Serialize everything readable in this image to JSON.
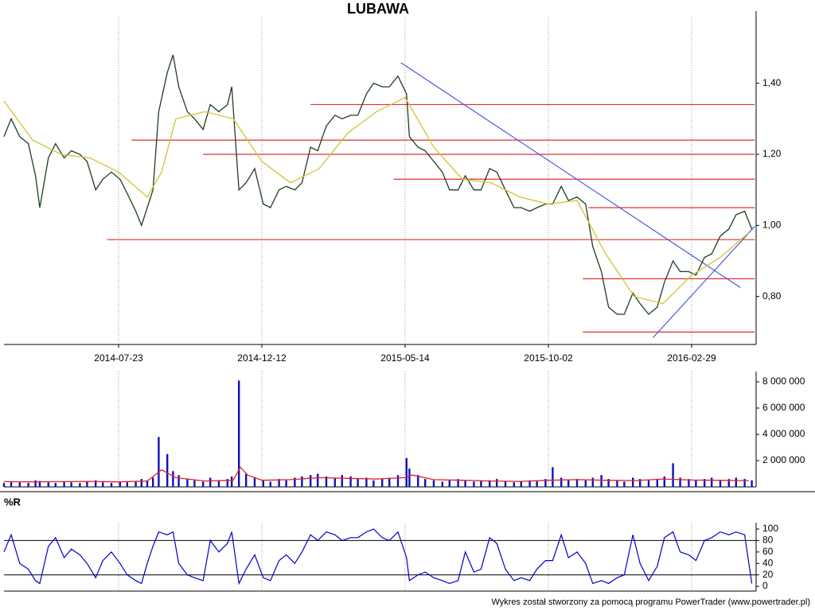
{
  "chart_data": [
    {
      "type": "line",
      "title": "LUBAWA",
      "x": [
        0,
        5,
        11,
        17,
        22,
        25,
        31,
        36,
        42,
        47,
        53,
        58,
        64,
        69,
        75,
        81,
        86,
        92,
        96,
        100,
        104,
        108,
        114,
        118,
        122,
        128,
        133,
        139,
        144,
        150,
        156,
        159,
        164,
        169,
        175,
        181,
        186,
        192,
        197,
        203,
        208,
        214,
        219,
        225,
        231,
        236,
        242,
        247,
        253,
        258,
        264,
        269,
        275,
        281,
        283,
        289,
        294,
        300,
        306,
        311,
        317,
        322,
        328,
        333,
        339,
        344,
        350,
        356,
        361,
        367,
        372,
        378,
        383,
        389,
        394,
        400,
        406,
        411,
        417,
        422,
        428,
        433,
        439,
        444,
        450,
        456,
        461,
        467,
        472,
        478,
        483,
        489,
        494,
        500,
        506,
        511,
        517,
        522
      ],
      "series": [
        {
          "color": "#1f3d1f",
          "values": [
            1.25,
            1.3,
            1.25,
            1.23,
            1.14,
            1.05,
            1.19,
            1.23,
            1.19,
            1.21,
            1.2,
            1.18,
            1.1,
            1.13,
            1.15,
            1.13,
            1.09,
            1.04,
            1.0,
            1.05,
            1.1,
            1.32,
            1.43,
            1.48,
            1.39,
            1.32,
            1.3,
            1.27,
            1.34,
            1.32,
            1.34,
            1.39,
            1.1,
            1.12,
            1.16,
            1.06,
            1.05,
            1.1,
            1.11,
            1.1,
            1.12,
            1.22,
            1.21,
            1.28,
            1.31,
            1.3,
            1.31,
            1.31,
            1.37,
            1.4,
            1.39,
            1.39,
            1.42,
            1.37,
            1.25,
            1.22,
            1.21,
            1.18,
            1.15,
            1.1,
            1.1,
            1.14,
            1.1,
            1.1,
            1.16,
            1.15,
            1.1,
            1.05,
            1.05,
            1.04,
            1.05,
            1.06,
            1.06,
            1.11,
            1.07,
            1.08,
            1.06,
            0.94,
            0.87,
            0.77,
            0.75,
            0.75,
            0.81,
            0.78,
            0.75,
            0.77,
            0.84,
            0.9,
            0.87,
            0.87,
            0.86,
            0.91,
            0.92,
            0.97,
            0.99,
            1.03,
            1.04,
            0.99
          ]
        }
      ],
      "moving_average": {
        "color": "#d4c232",
        "x": [
          0,
          20,
          40,
          60,
          80,
          100,
          110,
          120,
          140,
          160,
          180,
          200,
          220,
          240,
          260,
          280,
          300,
          320,
          340,
          360,
          380,
          400,
          420,
          440,
          460,
          480,
          500,
          520
        ],
        "values": [
          1.35,
          1.24,
          1.2,
          1.19,
          1.15,
          1.08,
          1.15,
          1.3,
          1.32,
          1.3,
          1.18,
          1.12,
          1.16,
          1.26,
          1.32,
          1.36,
          1.22,
          1.13,
          1.12,
          1.08,
          1.06,
          1.07,
          0.92,
          0.8,
          0.78,
          0.86,
          0.91,
          0.98
        ]
      },
      "levels": [
        {
          "color": "#e03030",
          "x": [
            214,
            524
          ],
          "values": [
            1.34,
            1.34
          ]
        },
        {
          "color": "#e03030",
          "x": [
            89,
            524
          ],
          "values": [
            1.24,
            1.24
          ]
        },
        {
          "color": "#e03030",
          "x": [
            139,
            524
          ],
          "values": [
            1.2,
            1.2
          ]
        },
        {
          "color": "#e03030",
          "x": [
            272,
            524
          ],
          "values": [
            1.13,
            1.13
          ]
        },
        {
          "color": "#e03030",
          "x": [
            408,
            524
          ],
          "values": [
            1.05,
            1.05
          ]
        },
        {
          "color": "#e03030",
          "x": [
            72,
            524
          ],
          "values": [
            0.96,
            0.96
          ]
        },
        {
          "color": "#e03030",
          "x": [
            404,
            524
          ],
          "values": [
            0.85,
            0.85
          ]
        },
        {
          "color": "#e03030",
          "x": [
            404,
            524
          ],
          "values": [
            0.7,
            0.7
          ]
        },
        {
          "color": "#4a5ae0",
          "x": [
            277,
            514
          ],
          "values": [
            1.458,
            0.825
          ]
        },
        {
          "color": "#4a5ae0",
          "x": [
            453,
            524
          ],
          "values": [
            0.684,
            0.997
          ]
        }
      ],
      "xlim": [
        0,
        525
      ],
      "ylim": [
        0.665,
        1.585
      ],
      "xticks": [
        {
          "value": 80,
          "label": "2014-07-23"
        },
        {
          "value": 180,
          "label": "2014-12-12"
        },
        {
          "value": 280,
          "label": "2015-05-14"
        },
        {
          "value": 380,
          "label": "2015-10-02"
        },
        {
          "value": 480,
          "label": "2016-02-29"
        }
      ],
      "yticks": [
        {
          "value": 0.8,
          "label": "0,80"
        },
        {
          "value": 1.0,
          "label": "1,00"
        },
        {
          "value": 1.2,
          "label": "1,20"
        },
        {
          "value": 1.4,
          "label": "1,40"
        }
      ],
      "grid": true
    },
    {
      "type": "bar",
      "color": "#1010c0",
      "x": [
        0,
        5,
        11,
        17,
        22,
        25,
        31,
        36,
        42,
        47,
        53,
        58,
        64,
        69,
        75,
        81,
        86,
        92,
        96,
        100,
        104,
        108,
        114,
        118,
        122,
        128,
        133,
        139,
        144,
        150,
        156,
        159,
        164,
        169,
        175,
        181,
        186,
        192,
        197,
        203,
        208,
        214,
        219,
        225,
        231,
        236,
        242,
        247,
        253,
        258,
        264,
        269,
        275,
        281,
        283,
        289,
        294,
        300,
        306,
        311,
        317,
        322,
        328,
        333,
        339,
        344,
        350,
        356,
        361,
        367,
        372,
        378,
        383,
        389,
        394,
        400,
        406,
        411,
        417,
        422,
        428,
        433,
        439,
        444,
        450,
        456,
        461,
        467,
        472,
        478,
        483,
        489,
        494,
        500,
        506,
        511,
        517,
        522
      ],
      "values": [
        300000,
        400000,
        350000,
        300000,
        500000,
        450000,
        350000,
        300000,
        400000,
        350000,
        300000,
        450000,
        500000,
        350000,
        300000,
        400000,
        350000,
        450000,
        600000,
        500000,
        700000,
        3800000,
        2500000,
        1200000,
        900000,
        600000,
        500000,
        400000,
        700000,
        500000,
        600000,
        800000,
        8100000,
        1000000,
        700000,
        500000,
        400000,
        600000,
        500000,
        700000,
        800000,
        900000,
        1000000,
        800000,
        700000,
        900000,
        800000,
        600000,
        700000,
        500000,
        600000,
        700000,
        900000,
        2200000,
        1400000,
        900000,
        600000,
        500000,
        400000,
        500000,
        600000,
        500000,
        400000,
        450000,
        500000,
        600000,
        400000,
        350000,
        400000,
        500000,
        450000,
        600000,
        1500000,
        700000,
        500000,
        600000,
        500000,
        700000,
        900000,
        600000,
        500000,
        400000,
        700000,
        600000,
        500000,
        600000,
        800000,
        1800000,
        700000,
        600000,
        500000,
        600000,
        700000,
        500000,
        600000,
        700000,
        600000,
        500000
      ],
      "moving_average": {
        "color": "#e02020",
        "x": [
          0,
          20,
          40,
          60,
          80,
          100,
          110,
          120,
          140,
          160,
          165,
          170,
          180,
          200,
          220,
          240,
          260,
          280,
          285,
          300,
          320,
          340,
          360,
          380,
          400,
          420,
          440,
          460,
          480,
          500,
          520
        ],
        "values": [
          400000,
          380000,
          400000,
          420000,
          380000,
          450000,
          1300000,
          700000,
          450000,
          500000,
          1500000,
          900000,
          500000,
          550000,
          700000,
          650000,
          600000,
          700000,
          900000,
          550000,
          500000,
          450000,
          420000,
          500000,
          550000,
          500000,
          480000,
          600000,
          520000,
          500000,
          480000
        ]
      },
      "xlim": [
        0,
        525
      ],
      "ylim": [
        0,
        8300000
      ],
      "yticks": [
        {
          "value": 2000000,
          "label": "2 000 000"
        },
        {
          "value": 4000000,
          "label": "4 000 000"
        },
        {
          "value": 6000000,
          "label": "6 000 000"
        },
        {
          "value": 8000000,
          "label": "8 000 000"
        }
      ]
    },
    {
      "type": "line",
      "title": "%R",
      "color": "#0000cc",
      "x": [
        0,
        5,
        11,
        17,
        22,
        25,
        31,
        36,
        42,
        47,
        53,
        58,
        64,
        69,
        75,
        81,
        86,
        92,
        96,
        100,
        104,
        108,
        114,
        118,
        122,
        128,
        133,
        139,
        144,
        150,
        156,
        159,
        164,
        169,
        175,
        181,
        186,
        192,
        197,
        203,
        208,
        214,
        219,
        225,
        231,
        236,
        242,
        247,
        253,
        258,
        264,
        269,
        275,
        281,
        283,
        289,
        294,
        300,
        306,
        311,
        317,
        322,
        328,
        333,
        339,
        344,
        350,
        356,
        361,
        367,
        372,
        378,
        383,
        389,
        394,
        400,
        406,
        411,
        417,
        422,
        428,
        433,
        439,
        444,
        450,
        456,
        461,
        467,
        472,
        478,
        483,
        489,
        494,
        500,
        506,
        511,
        517,
        522
      ],
      "values": [
        60,
        90,
        40,
        30,
        10,
        5,
        70,
        85,
        50,
        65,
        55,
        40,
        15,
        45,
        60,
        40,
        20,
        10,
        5,
        40,
        70,
        95,
        90,
        95,
        40,
        20,
        15,
        10,
        80,
        60,
        75,
        95,
        5,
        30,
        55,
        15,
        10,
        45,
        55,
        40,
        60,
        90,
        80,
        95,
        90,
        80,
        85,
        85,
        95,
        100,
        85,
        80,
        95,
        50,
        10,
        20,
        25,
        15,
        10,
        5,
        10,
        60,
        25,
        30,
        85,
        75,
        30,
        10,
        15,
        10,
        30,
        45,
        45,
        90,
        50,
        60,
        40,
        5,
        10,
        5,
        15,
        20,
        90,
        40,
        10,
        35,
        85,
        95,
        60,
        55,
        45,
        80,
        85,
        95,
        90,
        95,
        90,
        5
      ],
      "levels": [
        20,
        80
      ],
      "xlim": [
        0,
        525
      ],
      "ylim": [
        0,
        100
      ],
      "yticks": [
        0,
        20,
        40,
        60,
        80,
        100
      ]
    }
  ],
  "footer": "Wykres został stworzony za pomocą programu PowerTrader (www.powertrader.pl)"
}
